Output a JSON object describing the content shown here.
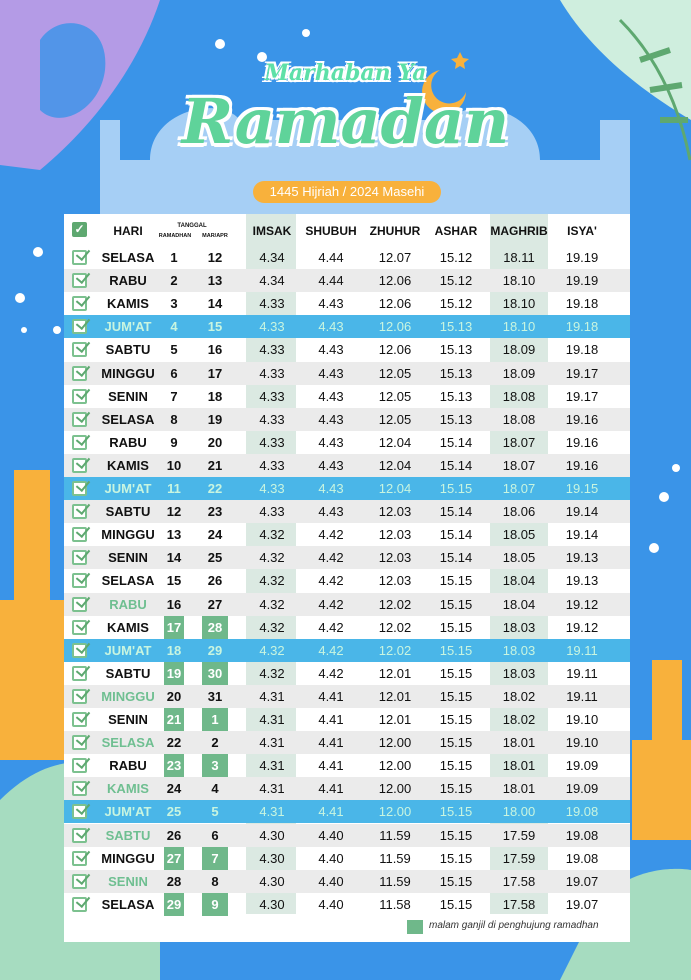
{
  "header": {
    "subtitle": "Marhaban Ya",
    "title": "Ramadan",
    "year_label": "1445 Hijriah / 2024 Masehi"
  },
  "columns": {
    "hari": "HARI",
    "tanggal": "TANGGAL",
    "ramadhan": "RAMADHAN",
    "mar_apr": "MAR/APR",
    "imsak": "IMSAK",
    "shubuh": "SHUBUH",
    "zhuhur": "ZHUHUR",
    "ashar": "ASHAR",
    "maghrib": "MAGHRIB",
    "isya": "ISYA'"
  },
  "colors": {
    "background": "#3a94e8",
    "friday": "#4ab6e8",
    "odd_night": "#6fb88a",
    "title_green": "#5fd39a",
    "pill": "#f8b13c"
  },
  "rows": [
    {
      "day": "SELASA",
      "ram": "1",
      "mar": "12",
      "imsak": "4.34",
      "shubuh": "4.44",
      "zhuhur": "12.07",
      "ashar": "15.12",
      "maghrib": "18.11",
      "isya": "19.19"
    },
    {
      "day": "RABU",
      "ram": "2",
      "mar": "13",
      "imsak": "4.34",
      "shubuh": "4.44",
      "zhuhur": "12.06",
      "ashar": "15.12",
      "maghrib": "18.10",
      "isya": "19.19"
    },
    {
      "day": "KAMIS",
      "ram": "3",
      "mar": "14",
      "imsak": "4.33",
      "shubuh": "4.43",
      "zhuhur": "12.06",
      "ashar": "15.12",
      "maghrib": "18.10",
      "isya": "19.18"
    },
    {
      "day": "JUM'AT",
      "ram": "4",
      "mar": "15",
      "imsak": "4.33",
      "shubuh": "4.43",
      "zhuhur": "12.06",
      "ashar": "15.13",
      "maghrib": "18.10",
      "isya": "19.18",
      "friday": true
    },
    {
      "day": "SABTU",
      "ram": "5",
      "mar": "16",
      "imsak": "4.33",
      "shubuh": "4.43",
      "zhuhur": "12.06",
      "ashar": "15.13",
      "maghrib": "18.09",
      "isya": "19.18"
    },
    {
      "day": "MINGGU",
      "ram": "6",
      "mar": "17",
      "imsak": "4.33",
      "shubuh": "4.43",
      "zhuhur": "12.05",
      "ashar": "15.13",
      "maghrib": "18.09",
      "isya": "19.17"
    },
    {
      "day": "SENIN",
      "ram": "7",
      "mar": "18",
      "imsak": "4.33",
      "shubuh": "4.43",
      "zhuhur": "12.05",
      "ashar": "15.13",
      "maghrib": "18.08",
      "isya": "19.17"
    },
    {
      "day": "SELASA",
      "ram": "8",
      "mar": "19",
      "imsak": "4.33",
      "shubuh": "4.43",
      "zhuhur": "12.05",
      "ashar": "15.13",
      "maghrib": "18.08",
      "isya": "19.16"
    },
    {
      "day": "RABU",
      "ram": "9",
      "mar": "20",
      "imsak": "4.33",
      "shubuh": "4.43",
      "zhuhur": "12.04",
      "ashar": "15.14",
      "maghrib": "18.07",
      "isya": "19.16"
    },
    {
      "day": "KAMIS",
      "ram": "10",
      "mar": "21",
      "imsak": "4.33",
      "shubuh": "4.43",
      "zhuhur": "12.04",
      "ashar": "15.14",
      "maghrib": "18.07",
      "isya": "19.16"
    },
    {
      "day": "JUM'AT",
      "ram": "11",
      "mar": "22",
      "imsak": "4.33",
      "shubuh": "4.43",
      "zhuhur": "12.04",
      "ashar": "15.15",
      "maghrib": "18.07",
      "isya": "19.15",
      "friday": true
    },
    {
      "day": "SABTU",
      "ram": "12",
      "mar": "23",
      "imsak": "4.33",
      "shubuh": "4.43",
      "zhuhur": "12.03",
      "ashar": "15.14",
      "maghrib": "18.06",
      "isya": "19.14"
    },
    {
      "day": "MINGGU",
      "ram": "13",
      "mar": "24",
      "imsak": "4.32",
      "shubuh": "4.42",
      "zhuhur": "12.03",
      "ashar": "15.14",
      "maghrib": "18.05",
      "isya": "19.14"
    },
    {
      "day": "SENIN",
      "ram": "14",
      "mar": "25",
      "imsak": "4.32",
      "shubuh": "4.42",
      "zhuhur": "12.03",
      "ashar": "15.14",
      "maghrib": "18.05",
      "isya": "19.13"
    },
    {
      "day": "SELASA",
      "ram": "15",
      "mar": "26",
      "imsak": "4.32",
      "shubuh": "4.42",
      "zhuhur": "12.03",
      "ashar": "15.15",
      "maghrib": "18.04",
      "isya": "19.13"
    },
    {
      "day": "RABU",
      "ram": "16",
      "mar": "27",
      "imsak": "4.32",
      "shubuh": "4.42",
      "zhuhur": "12.02",
      "ashar": "15.15",
      "maghrib": "18.04",
      "isya": "19.12",
      "light": true
    },
    {
      "day": "KAMIS",
      "ram": "17",
      "mar": "28",
      "imsak": "4.32",
      "shubuh": "4.42",
      "zhuhur": "12.02",
      "ashar": "15.15",
      "maghrib": "18.03",
      "isya": "19.12",
      "odd": true
    },
    {
      "day": "JUM'AT",
      "ram": "18",
      "mar": "29",
      "imsak": "4.32",
      "shubuh": "4.42",
      "zhuhur": "12.02",
      "ashar": "15.15",
      "maghrib": "18.03",
      "isya": "19.11",
      "friday": true
    },
    {
      "day": "SABTU",
      "ram": "19",
      "mar": "30",
      "imsak": "4.32",
      "shubuh": "4.42",
      "zhuhur": "12.01",
      "ashar": "15.15",
      "maghrib": "18.03",
      "isya": "19.11",
      "odd": true
    },
    {
      "day": "MINGGU",
      "ram": "20",
      "mar": "31",
      "imsak": "4.31",
      "shubuh": "4.41",
      "zhuhur": "12.01",
      "ashar": "15.15",
      "maghrib": "18.02",
      "isya": "19.11",
      "light": true
    },
    {
      "day": "SENIN",
      "ram": "21",
      "mar": "1",
      "imsak": "4.31",
      "shubuh": "4.41",
      "zhuhur": "12.01",
      "ashar": "15.15",
      "maghrib": "18.02",
      "isya": "19.10",
      "odd": true
    },
    {
      "day": "SELASA",
      "ram": "22",
      "mar": "2",
      "imsak": "4.31",
      "shubuh": "4.41",
      "zhuhur": "12.00",
      "ashar": "15.15",
      "maghrib": "18.01",
      "isya": "19.10",
      "light": true
    },
    {
      "day": "RABU",
      "ram": "23",
      "mar": "3",
      "imsak": "4.31",
      "shubuh": "4.41",
      "zhuhur": "12.00",
      "ashar": "15.15",
      "maghrib": "18.01",
      "isya": "19.09",
      "odd": true
    },
    {
      "day": "KAMIS",
      "ram": "24",
      "mar": "4",
      "imsak": "4.31",
      "shubuh": "4.41",
      "zhuhur": "12.00",
      "ashar": "15.15",
      "maghrib": "18.01",
      "isya": "19.09",
      "light": true
    },
    {
      "day": "JUM'AT",
      "ram": "25",
      "mar": "5",
      "imsak": "4.31",
      "shubuh": "4.41",
      "zhuhur": "12.00",
      "ashar": "15.15",
      "maghrib": "18.00",
      "isya": "19.08",
      "friday": true
    },
    {
      "day": "SABTU",
      "ram": "26",
      "mar": "6",
      "imsak": "4.30",
      "shubuh": "4.40",
      "zhuhur": "11.59",
      "ashar": "15.15",
      "maghrib": "17.59",
      "isya": "19.08",
      "light": true
    },
    {
      "day": "MINGGU",
      "ram": "27",
      "mar": "7",
      "imsak": "4.30",
      "shubuh": "4.40",
      "zhuhur": "11.59",
      "ashar": "15.15",
      "maghrib": "17.59",
      "isya": "19.08",
      "odd": true
    },
    {
      "day": "SENIN",
      "ram": "28",
      "mar": "8",
      "imsak": "4.30",
      "shubuh": "4.40",
      "zhuhur": "11.59",
      "ashar": "15.15",
      "maghrib": "17.58",
      "isya": "19.07",
      "light": true
    },
    {
      "day": "SELASA",
      "ram": "29",
      "mar": "9",
      "imsak": "4.30",
      "shubuh": "4.40",
      "zhuhur": "11.58",
      "ashar": "15.15",
      "maghrib": "17.58",
      "isya": "19.07",
      "odd": true
    }
  ],
  "legend": {
    "text": "malam ganjil di penghujung ramadhan"
  }
}
